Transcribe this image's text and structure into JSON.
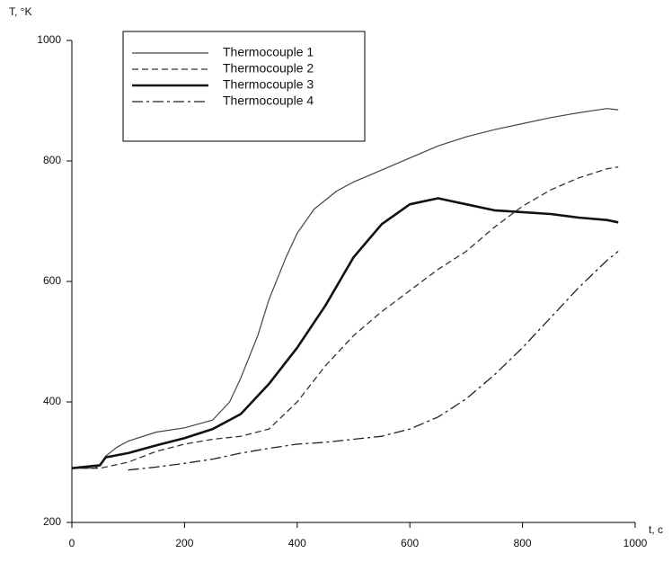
{
  "chart_data": {
    "type": "line",
    "y_label": "T, °K",
    "x_label": "t, c",
    "xlim": [
      0,
      1000
    ],
    "xticks": [
      0,
      200,
      400,
      600,
      800,
      1000
    ],
    "ylim": [
      200,
      1000
    ],
    "yticks": [
      200,
      400,
      600,
      800,
      1000
    ],
    "grid": false,
    "legend": "upper left",
    "series": [
      {
        "name": "Thermocouple 1",
        "color": "#444444",
        "width": 1.2,
        "dash": "solid",
        "x": [
          0,
          40,
          50,
          60,
          80,
          100,
          150,
          200,
          250,
          280,
          300,
          330,
          350,
          380,
          400,
          430,
          470,
          500,
          550,
          600,
          650,
          700,
          750,
          800,
          850,
          900,
          950,
          970
        ],
        "values": [
          290,
          290,
          295,
          310,
          325,
          335,
          350,
          357,
          370,
          400,
          440,
          510,
          570,
          640,
          680,
          720,
          750,
          765,
          785,
          805,
          825,
          840,
          852,
          862,
          872,
          880,
          887,
          885
        ]
      },
      {
        "name": "Thermocouple 2",
        "color": "#333333",
        "width": 1.3,
        "dash": "dashed",
        "x": [
          0,
          50,
          100,
          150,
          200,
          250,
          300,
          350,
          400,
          450,
          500,
          550,
          600,
          650,
          700,
          750,
          800,
          850,
          900,
          950,
          970
        ],
        "values": [
          290,
          290,
          300,
          318,
          330,
          338,
          343,
          355,
          400,
          460,
          510,
          550,
          585,
          620,
          650,
          690,
          725,
          752,
          772,
          787,
          790
        ]
      },
      {
        "name": "Thermocouple 3",
        "color": "#111111",
        "width": 2.6,
        "dash": "solid",
        "x": [
          0,
          50,
          60,
          100,
          150,
          200,
          250,
          300,
          350,
          400,
          450,
          500,
          550,
          600,
          650,
          700,
          750,
          800,
          850,
          900,
          950,
          970
        ],
        "values": [
          290,
          295,
          308,
          315,
          328,
          340,
          355,
          380,
          430,
          490,
          560,
          640,
          695,
          728,
          738,
          728,
          718,
          715,
          712,
          706,
          702,
          698
        ]
      },
      {
        "name": "Thermocouple 4",
        "color": "#222222",
        "width": 1.3,
        "dash": "dashdot",
        "x": [
          100,
          150,
          200,
          250,
          300,
          350,
          400,
          450,
          500,
          550,
          600,
          650,
          700,
          750,
          800,
          850,
          900,
          950,
          970
        ],
        "values": [
          287,
          292,
          298,
          305,
          315,
          323,
          330,
          333,
          338,
          343,
          355,
          375,
          405,
          445,
          490,
          540,
          590,
          635,
          650
        ]
      }
    ]
  }
}
